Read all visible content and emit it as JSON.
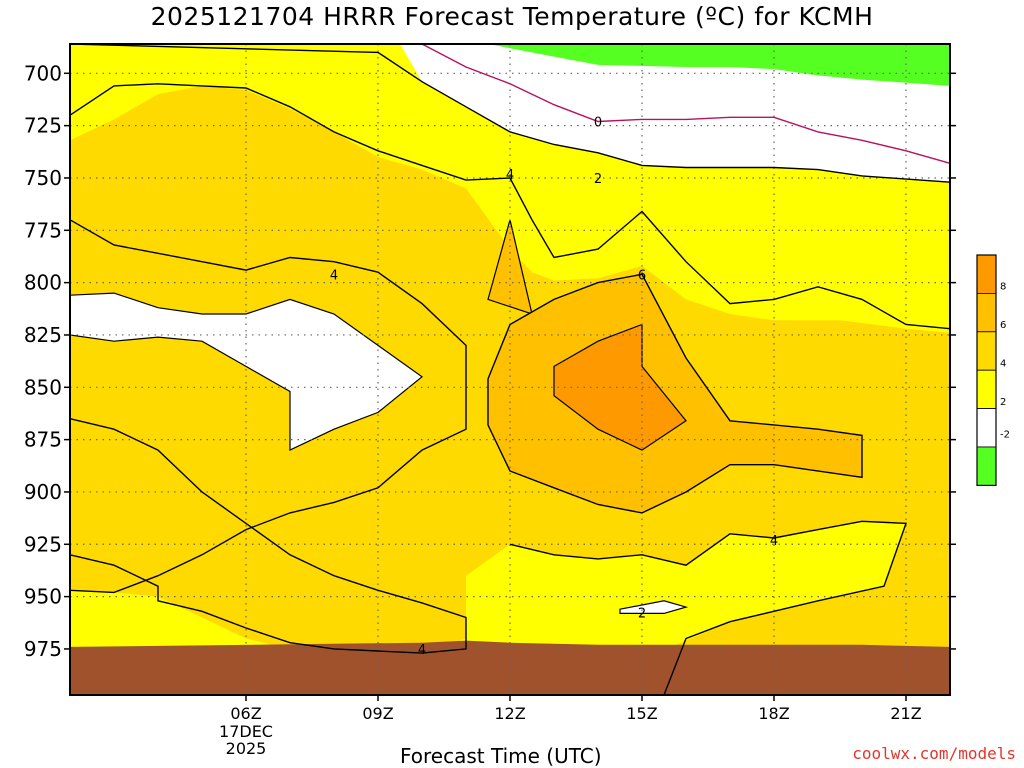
{
  "chart_data": {
    "type": "contour",
    "title": "2025121704 HRRR Forecast Temperature (ºC) for KCMH",
    "xlabel": "Forecast Time (UTC)",
    "ylabel": "",
    "credit": "coolwx.com/models",
    "x_ticks": [
      {
        "hour": 6,
        "label": "06Z",
        "sub": [
          "17DEC",
          "2025"
        ]
      },
      {
        "hour": 9,
        "label": "09Z",
        "sub": []
      },
      {
        "hour": 12,
        "label": "12Z",
        "sub": []
      },
      {
        "hour": 15,
        "label": "15Z",
        "sub": []
      },
      {
        "hour": 18,
        "label": "18Z",
        "sub": []
      },
      {
        "hour": 21,
        "label": "21Z",
        "sub": []
      }
    ],
    "xlim_hours": [
      2,
      22
    ],
    "y_ticks": [
      700,
      725,
      750,
      775,
      800,
      825,
      850,
      875,
      900,
      925,
      950,
      975
    ],
    "ylim_hpa": [
      686,
      997
    ],
    "grid": true,
    "legend": {
      "position": "right",
      "labels": [
        "8",
        "6",
        "4",
        "2",
        "-2"
      ],
      "colors": [
        "#fe9a00",
        "#ffc000",
        "#ffda00",
        "#ffff00",
        "#ffffff",
        "#55ff22"
      ]
    },
    "levels": [
      -2,
      0,
      2,
      4,
      6,
      8
    ],
    "fill_colors": {
      "lt_m2": "#55ff22",
      "c0_2": "#ffffff",
      "c2_4": "#ffff00",
      "c4_6": "#ffda00",
      "c6_8": "#ffc000",
      "c8_10": "#fe9a00",
      "ground": "#a0522d"
    },
    "regions": {
      "green": [
        [
          11.5,
          686
        ],
        [
          22,
          686
        ],
        [
          22,
          706
        ],
        [
          20,
          703
        ],
        [
          19,
          701
        ],
        [
          18,
          698
        ],
        [
          17,
          697
        ],
        [
          16,
          697
        ],
        [
          14,
          696
        ],
        [
          13,
          692
        ],
        [
          12,
          688
        ],
        [
          11.5,
          686
        ]
      ],
      "white_upper": [
        [
          9.5,
          686
        ],
        [
          22,
          686
        ],
        [
          22,
          752
        ],
        [
          20,
          749
        ],
        [
          19,
          746
        ],
        [
          18,
          745
        ],
        [
          16,
          745
        ],
        [
          15,
          744
        ],
        [
          14,
          738
        ],
        [
          13,
          734
        ],
        [
          12,
          728
        ],
        [
          11,
          716
        ],
        [
          10,
          704
        ],
        [
          9.5,
          686
        ]
      ],
      "yellow_top": [
        [
          2,
          686
        ],
        [
          9.5,
          686
        ],
        [
          10,
          704
        ],
        [
          11,
          716
        ],
        [
          12,
          728
        ],
        [
          13,
          734
        ],
        [
          14,
          738
        ],
        [
          15,
          744
        ],
        [
          16,
          745
        ],
        [
          18,
          745
        ],
        [
          19,
          746
        ],
        [
          20,
          749
        ],
        [
          22,
          752
        ],
        [
          22,
          824
        ],
        [
          21,
          822
        ],
        [
          19.5,
          818
        ],
        [
          18,
          818
        ],
        [
          17,
          815
        ],
        [
          16,
          808
        ],
        [
          15,
          792
        ],
        [
          14,
          798
        ],
        [
          13,
          799
        ],
        [
          12.5,
          795
        ],
        [
          12,
          784
        ],
        [
          11,
          755
        ],
        [
          10,
          746
        ],
        [
          9,
          740
        ],
        [
          8,
          728
        ],
        [
          7,
          717
        ],
        [
          6,
          708
        ],
        [
          5,
          706
        ],
        [
          4,
          710
        ],
        [
          3,
          722
        ],
        [
          2,
          732
        ]
      ],
      "orange_mid": [
        [
          2,
          732
        ],
        [
          3,
          722
        ],
        [
          4,
          710
        ],
        [
          5,
          706
        ],
        [
          6,
          708
        ],
        [
          7,
          717
        ],
        [
          8,
          728
        ],
        [
          9,
          740
        ],
        [
          10,
          746
        ],
        [
          11,
          755
        ],
        [
          12,
          784
        ],
        [
          12.5,
          795
        ],
        [
          13,
          799
        ],
        [
          14,
          798
        ],
        [
          15,
          792
        ],
        [
          16,
          808
        ],
        [
          17,
          815
        ],
        [
          18,
          818
        ],
        [
          19.5,
          818
        ],
        [
          21,
          822
        ],
        [
          22,
          824
        ],
        [
          22,
          997
        ],
        [
          17,
          997
        ],
        [
          16,
          985
        ],
        [
          17,
          972
        ],
        [
          18,
          962
        ],
        [
          20,
          954
        ],
        [
          22,
          951
        ],
        [
          22,
          900
        ],
        [
          21.5,
          896
        ],
        [
          21.5,
          880
        ],
        [
          22,
          868
        ],
        [
          22,
          824
        ],
        [
          21,
          822
        ],
        [
          17,
          868
        ],
        [
          19,
          870
        ],
        [
          20,
          873
        ],
        [
          20,
          893
        ],
        [
          18,
          887
        ],
        [
          17,
          887
        ],
        [
          16,
          900
        ],
        [
          15,
          910
        ],
        [
          14,
          906
        ],
        [
          13,
          898
        ],
        [
          12,
          890
        ],
        [
          11.5,
          868
        ],
        [
          11.5,
          844
        ],
        [
          12,
          818
        ],
        [
          13,
          808
        ],
        [
          14,
          800
        ],
        [
          15,
          810
        ],
        [
          16,
          836
        ],
        [
          17,
          866
        ],
        [
          22,
          824
        ]
      ],
      "orange_band": [
        [
          2,
          997
        ],
        [
          2,
          947
        ],
        [
          3,
          948
        ],
        [
          4,
          950
        ],
        [
          5,
          960
        ],
        [
          6,
          970
        ],
        [
          7,
          975
        ],
        [
          8,
          976
        ],
        [
          9,
          977
        ],
        [
          10,
          977
        ],
        [
          11,
          970
        ],
        [
          11,
          940
        ],
        [
          12,
          925
        ],
        [
          13,
          930
        ],
        [
          14,
          932
        ],
        [
          15,
          930
        ],
        [
          16,
          935
        ],
        [
          17,
          920
        ],
        [
          18,
          922
        ],
        [
          19,
          918
        ],
        [
          20,
          914
        ],
        [
          21,
          915
        ],
        [
          20.5,
          945
        ],
        [
          19,
          952
        ],
        [
          17,
          962
        ],
        [
          15,
          980
        ],
        [
          14,
          997
        ]
      ]
    },
    "contours": [
      {
        "value": 0,
        "color": "#b5125f",
        "points": [
          [
            10,
            686
          ],
          [
            11,
            697
          ],
          [
            12,
            705
          ],
          [
            13,
            715
          ],
          [
            14,
            723
          ],
          [
            15,
            722
          ],
          [
            16,
            722
          ],
          [
            17,
            721
          ],
          [
            18,
            721
          ],
          [
            19,
            728
          ],
          [
            20,
            732
          ],
          [
            21,
            737
          ],
          [
            22,
            743
          ]
        ],
        "label_at": [
          14,
          723
        ]
      },
      {
        "value": 2,
        "color": "#000",
        "points": [
          [
            2,
            686
          ],
          [
            9,
            690
          ],
          [
            10,
            704
          ],
          [
            11,
            716
          ],
          [
            12,
            728
          ],
          [
            13,
            734
          ],
          [
            14,
            738
          ],
          [
            15,
            744
          ],
          [
            16,
            745
          ],
          [
            18,
            745
          ],
          [
            19,
            746
          ],
          [
            20,
            749
          ],
          [
            22,
            752
          ]
        ],
        "label_at": [
          14,
          750
        ]
      },
      {
        "value": 4,
        "color": "#000",
        "points": [
          [
            2,
            720
          ],
          [
            3,
            706
          ],
          [
            4,
            705
          ],
          [
            5,
            706
          ],
          [
            6,
            707
          ],
          [
            7,
            716
          ],
          [
            8,
            728
          ],
          [
            9,
            737
          ],
          [
            10,
            744
          ],
          [
            11,
            751
          ],
          [
            12,
            750
          ],
          [
            12.5,
            770
          ],
          [
            13,
            788
          ],
          [
            14,
            784
          ],
          [
            15,
            766
          ],
          [
            16,
            790
          ],
          [
            17,
            810
          ],
          [
            18,
            808
          ],
          [
            19,
            802
          ],
          [
            20,
            808
          ],
          [
            21,
            820
          ],
          [
            22,
            822
          ]
        ],
        "label_at": [
          12,
          748
        ]
      },
      {
        "value": 4,
        "color": "#000",
        "points": [
          [
            2,
            770
          ],
          [
            3,
            782
          ],
          [
            4,
            786
          ],
          [
            5,
            790
          ],
          [
            6,
            794
          ],
          [
            7,
            788
          ],
          [
            8,
            790
          ],
          [
            9,
            795
          ],
          [
            10,
            810
          ],
          [
            11,
            830
          ],
          [
            11,
            852
          ],
          [
            11,
            870
          ],
          [
            10,
            880
          ],
          [
            9,
            898
          ],
          [
            8,
            905
          ],
          [
            7,
            910
          ],
          [
            6,
            918
          ],
          [
            5,
            930
          ],
          [
            4,
            940
          ],
          [
            3,
            948
          ],
          [
            2,
            947
          ]
        ],
        "label_at": [
          8,
          796
        ]
      },
      {
        "value": 4,
        "color": "#000",
        "points": [
          [
            2,
            865
          ],
          [
            3,
            870
          ],
          [
            4,
            880
          ],
          [
            5,
            900
          ],
          [
            6,
            915
          ],
          [
            7,
            930
          ],
          [
            8,
            940
          ],
          [
            9,
            947
          ],
          [
            10,
            953
          ],
          [
            11,
            960
          ],
          [
            11,
            975
          ],
          [
            10,
            977
          ],
          [
            9,
            976
          ],
          [
            8,
            975
          ],
          [
            7,
            972
          ],
          [
            6,
            965
          ],
          [
            5,
            957
          ],
          [
            4,
            952
          ],
          [
            4,
            945
          ],
          [
            3,
            935
          ],
          [
            2,
            930
          ]
        ],
        "label_at": [
          10,
          975
        ]
      },
      {
        "value": 4,
        "color": "#000",
        "points": [
          [
            12,
            925
          ],
          [
            13,
            930
          ],
          [
            14,
            932
          ],
          [
            15,
            930
          ],
          [
            16,
            935
          ],
          [
            17,
            920
          ],
          [
            18,
            922
          ],
          [
            19,
            918
          ],
          [
            20,
            914
          ],
          [
            21,
            915
          ],
          [
            20.5,
            945
          ],
          [
            19,
            952
          ],
          [
            17,
            962
          ],
          [
            16,
            970
          ],
          [
            15.5,
            997
          ]
        ],
        "label_at": [
          18,
          923
        ]
      },
      {
        "value": 6,
        "color": "#000",
        "points": [
          [
            11.5,
            846
          ],
          [
            12,
            820
          ],
          [
            13,
            808
          ],
          [
            14,
            800
          ],
          [
            15,
            796
          ],
          [
            16,
            836
          ],
          [
            17,
            866
          ],
          [
            19,
            870
          ],
          [
            20,
            873
          ],
          [
            20,
            893
          ],
          [
            18,
            887
          ],
          [
            17,
            887
          ],
          [
            16,
            900
          ],
          [
            15,
            910
          ],
          [
            14,
            906
          ],
          [
            13,
            898
          ],
          [
            12,
            890
          ],
          [
            11.5,
            868
          ],
          [
            11.5,
            846
          ]
        ],
        "label_at": [
          15,
          796
        ]
      }
    ],
    "spots": [
      {
        "id": "warm-core",
        "value": 8,
        "points": [
          [
            13,
            840
          ],
          [
            14,
            828
          ],
          [
            15,
            820
          ],
          [
            15,
            840
          ],
          [
            16,
            866
          ],
          [
            15,
            880
          ],
          [
            14,
            870
          ],
          [
            13,
            854
          ]
        ]
      },
      {
        "id": "orange-spike",
        "value": 6,
        "points": [
          [
            12,
            770
          ],
          [
            12.5,
            815
          ],
          [
            11.5,
            808
          ],
          [
            12,
            770
          ]
        ]
      },
      {
        "id": "white-pocket-left",
        "points": [
          [
            2,
            806
          ],
          [
            3,
            805
          ],
          [
            4,
            812
          ],
          [
            5,
            815
          ],
          [
            6,
            815
          ],
          [
            7,
            808
          ],
          [
            8,
            815
          ],
          [
            9,
            830
          ],
          [
            10,
            845
          ],
          [
            9,
            862
          ],
          [
            8,
            870
          ],
          [
            7,
            880
          ],
          [
            7,
            852
          ],
          [
            6,
            840
          ],
          [
            5,
            828
          ],
          [
            4,
            826
          ],
          [
            3,
            828
          ],
          [
            2,
            825
          ]
        ]
      },
      {
        "id": "white-pocket-low",
        "value": 2,
        "points": [
          [
            14.5,
            956
          ],
          [
            15.5,
            952
          ],
          [
            16,
            955
          ],
          [
            15.5,
            958
          ],
          [
            14.5,
            958
          ]
        ]
      }
    ],
    "ground": [
      [
        2,
        974
      ],
      [
        10,
        972
      ],
      [
        11,
        971
      ],
      [
        12,
        972
      ],
      [
        14,
        973
      ],
      [
        16,
        973
      ],
      [
        20,
        973
      ],
      [
        22,
        974
      ],
      [
        22,
        997
      ],
      [
        2,
        997
      ]
    ]
  }
}
